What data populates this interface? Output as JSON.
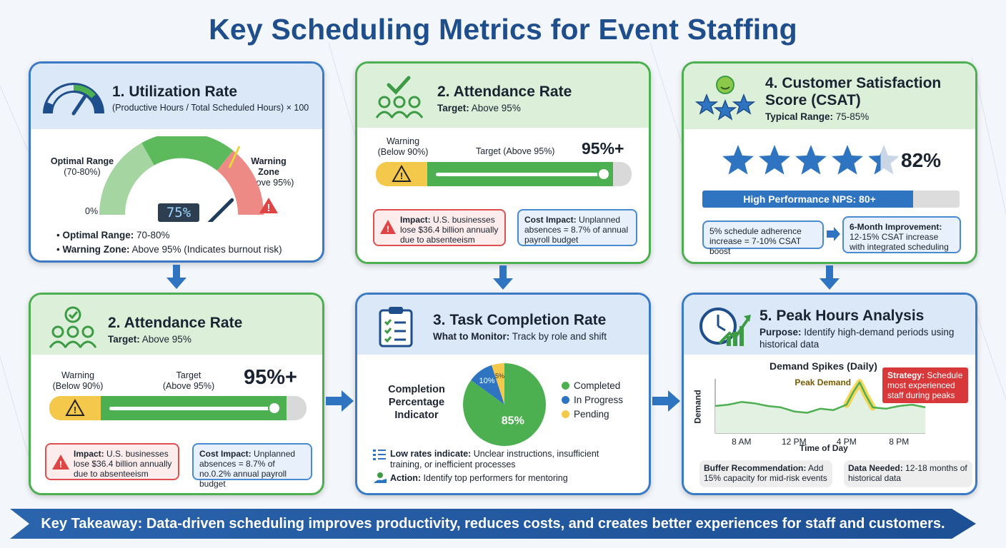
{
  "title": "Key Scheduling Metrics for Event Staffing",
  "colors": {
    "primary": "#1f4e8c",
    "green": "#4caf50",
    "red": "#e05050",
    "yellow": "#f4c84a",
    "blue": "#2f74c0"
  },
  "util": {
    "title": "1. Utilization Rate",
    "formula": "(Productive Hours / Total Scheduled Hours) × 100",
    "optimal_label": "Optimal Range",
    "optimal_range": "(70-80%)",
    "warning_label": "Warning Zone",
    "warning_range": "(above 95%)",
    "zero": "0%",
    "value": "75%",
    "gauge_value": 75,
    "b1_label": "Optimal Range:",
    "b1_text": " 70-80%",
    "b2_label": "Warning Zone:",
    "b2_text": " Above 95% (Indicates burnout risk)"
  },
  "att_top": {
    "title": "2. Attendance Rate",
    "target_label": "Target:",
    "target": " Above 95%",
    "warn1": "Warning",
    "warn2": "(Below 90%)",
    "target_bar": "Target (Above 95%)",
    "value": "95%+",
    "impact_label": "Impact:",
    "impact": " U.S. businesses lose $36.4 billion annually due to absenteeism",
    "cost_label": "Cost Impact:",
    "cost": " Unplanned absences = 8.7% of annual payroll budget"
  },
  "csat": {
    "title1": "4. Customer Satisfaction",
    "title2": "Score (CSAT)",
    "range_label": "Typical Range:",
    "range": " 75-85%",
    "value": "82%",
    "stars": 4.4,
    "nps": "High Performance NPS: 80+",
    "nps_fill": 0.82,
    "c1": "5% schedule adherence increase = 7-10% CSAT boost",
    "c2_label": "6-Month Improvement:",
    "c2": " 12-15% CSAT increase with integrated scheduling"
  },
  "att_bot": {
    "title": "2. Attendance Rate",
    "target_label": "Target:",
    "target": " Above 95%",
    "warn1": "Warning",
    "warn2": "(Below 90%)",
    "t1": "Target",
    "t2": "(Above 95%)",
    "value": "95%+",
    "impact_label": "Impact:",
    "impact": " U.S. businesses lose $36.4 billion annually due to absenteeism",
    "cost_label": "Cost Impact:",
    "cost": " Unplanned absences = 8.7% of no.0.2% annual payroll budget"
  },
  "task": {
    "title": "3. Task Completion Rate",
    "monitor_label": "What to Monitor:",
    "monitor": " Track by role and shift",
    "indicator": "Completion Percentage Indicator",
    "low_label": "Low rates indicate:",
    "low": " Unclear instructions, insufficient training, or inefficient processes",
    "action_label": "Action:",
    "action": " Identify top performers for mentoring"
  },
  "peak": {
    "title": "5. Peak Hours Analysis",
    "purpose_label": "Purpose:",
    "purpose": " Identify high-demand periods using historical data",
    "buffer_label": "Buffer Recommendation:",
    "buffer": " Add 15% capacity for mid-risk events",
    "data_label": "Data Needed:",
    "data": " 12-18 months of historical data"
  },
  "chart_data": [
    {
      "type": "pie",
      "categories": [
        "Completed",
        "In Progress",
        "Pending"
      ],
      "values": [
        85,
        10,
        5
      ],
      "labels": [
        "85%",
        "10%",
        "5%"
      ],
      "colors": [
        "#4caf50",
        "#2f74c0",
        "#f4c84a"
      ],
      "title": "",
      "legend": "right"
    },
    {
      "type": "line",
      "title": "Demand Spikes (Daily)",
      "xlabel": "Time of Day",
      "ylabel": "Demand",
      "x_ticks": [
        "8 AM",
        "12 PM",
        "4 PM",
        "8 PM"
      ],
      "x": [
        6,
        7,
        8,
        9,
        10,
        11,
        12,
        13,
        14,
        15,
        16,
        16.5,
        17,
        17.5,
        18,
        19,
        20,
        21,
        22
      ],
      "y": [
        40,
        42,
        46,
        44,
        40,
        38,
        32,
        30,
        36,
        34,
        42,
        60,
        75,
        55,
        38,
        36,
        40,
        42,
        38
      ],
      "annotation": "Peak Demand",
      "strategy_label": "Strategy:",
      "strategy": " Schedule most experienced staff during peaks"
    }
  ],
  "banner": "Key Takeaway: Data-driven scheduling improves productivity, reduces costs, and creates better experiences for staff and customers."
}
